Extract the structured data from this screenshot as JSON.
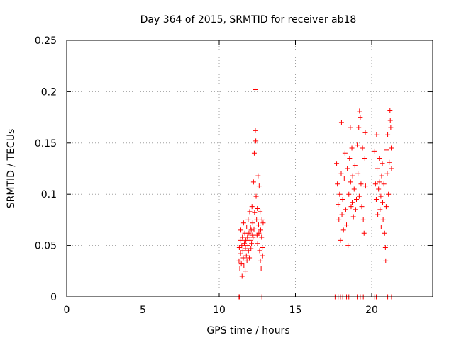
{
  "chart_data": {
    "type": "scatter",
    "title": "Day 364 of 2015, SRMTID for receiver ab18",
    "xlabel": "GPS time / hours",
    "ylabel": "SRMTID / TECUs",
    "xlim": [
      0,
      24
    ],
    "ylim": [
      0,
      0.25
    ],
    "xticks": [
      0,
      5,
      10,
      15,
      20
    ],
    "yticks": [
      0,
      0.05,
      0.1,
      0.15,
      0.2,
      0.25
    ],
    "xtick_labels": [
      "0",
      "5",
      "10",
      "15",
      "20"
    ],
    "ytick_labels": [
      "0",
      "0.05",
      "0.1",
      "0.15",
      "0.2",
      "0.25"
    ],
    "grid": true,
    "marker": "+",
    "series": [
      {
        "name": "SRMTID",
        "color": "#ff0000",
        "points": [
          [
            11.3,
            0
          ],
          [
            11.35,
            0
          ],
          [
            12.8,
            0
          ],
          [
            17.6,
            0
          ],
          [
            17.8,
            0
          ],
          [
            17.95,
            0
          ],
          [
            18.1,
            0
          ],
          [
            18.35,
            0
          ],
          [
            18.5,
            0
          ],
          [
            19.05,
            0
          ],
          [
            19.25,
            0
          ],
          [
            19.45,
            0
          ],
          [
            20.2,
            0
          ],
          [
            20.3,
            0
          ],
          [
            21.05,
            0
          ],
          [
            21.3,
            0
          ],
          [
            11.3,
            0.035
          ],
          [
            11.32,
            0.048
          ],
          [
            11.35,
            0.028
          ],
          [
            11.38,
            0.055
          ],
          [
            11.4,
            0.042
          ],
          [
            11.42,
            0.065
          ],
          [
            11.45,
            0.032
          ],
          [
            11.48,
            0.05
          ],
          [
            11.5,
            0.02
          ],
          [
            11.52,
            0.058
          ],
          [
            11.55,
            0.045
          ],
          [
            11.58,
            0.038
          ],
          [
            11.6,
            0.072
          ],
          [
            11.62,
            0.03
          ],
          [
            11.65,
            0.052
          ],
          [
            11.68,
            0.062
          ],
          [
            11.7,
            0.025
          ],
          [
            11.72,
            0.047
          ],
          [
            11.75,
            0.055
          ],
          [
            11.78,
            0.04
          ],
          [
            11.8,
            0.068
          ],
          [
            11.82,
            0.035
          ],
          [
            11.85,
            0.058
          ],
          [
            11.88,
            0.05
          ],
          [
            11.9,
            0.075
          ],
          [
            11.92,
            0.045
          ],
          [
            11.95,
            0.062
          ],
          [
            11.98,
            0.038
          ],
          [
            12.0,
            0.083
          ],
          [
            12.02,
            0.055
          ],
          [
            12.05,
            0.068
          ],
          [
            12.08,
            0.047
          ],
          [
            12.1,
            0.065
          ],
          [
            12.12,
            0.052
          ],
          [
            12.15,
            0.088
          ],
          [
            12.18,
            0.06
          ],
          [
            12.2,
            0.072
          ],
          [
            12.22,
            0.058
          ],
          [
            12.25,
            0.112
          ],
          [
            12.28,
            0.066
          ],
          [
            12.3,
            0.14
          ],
          [
            12.32,
            0.082
          ],
          [
            12.35,
            0.202
          ],
          [
            12.37,
            0.162
          ],
          [
            12.4,
            0.152
          ],
          [
            12.42,
            0.098
          ],
          [
            12.45,
            0.075
          ],
          [
            12.48,
            0.06
          ],
          [
            12.5,
            0.086
          ],
          [
            12.52,
            0.052
          ],
          [
            12.55,
            0.118
          ],
          [
            12.58,
            0.07
          ],
          [
            12.6,
            0.062
          ],
          [
            12.62,
            0.108
          ],
          [
            12.65,
            0.045
          ],
          [
            12.68,
            0.083
          ],
          [
            12.7,
            0.035
          ],
          [
            12.72,
            0.065
          ],
          [
            12.75,
            0.028
          ],
          [
            12.78,
            0.058
          ],
          [
            12.8,
            0.075
          ],
          [
            12.82,
            0.048
          ],
          [
            12.85,
            0.04
          ],
          [
            12.88,
            0.072
          ],
          [
            17.7,
            0.13
          ],
          [
            17.75,
            0.11
          ],
          [
            17.8,
            0.09
          ],
          [
            17.85,
            0.075
          ],
          [
            17.9,
            0.1
          ],
          [
            17.95,
            0.055
          ],
          [
            18.0,
            0.12
          ],
          [
            18.02,
            0.17
          ],
          [
            18.05,
            0.08
          ],
          [
            18.1,
            0.095
          ],
          [
            18.15,
            0.065
          ],
          [
            18.2,
            0.115
          ],
          [
            18.25,
            0.14
          ],
          [
            18.3,
            0.085
          ],
          [
            18.35,
            0.07
          ],
          [
            18.4,
            0.125
          ],
          [
            18.45,
            0.05
          ],
          [
            18.5,
            0.1
          ],
          [
            18.55,
            0.135
          ],
          [
            18.6,
            0.165
          ],
          [
            18.62,
            0.112
          ],
          [
            18.65,
            0.088
          ],
          [
            18.7,
            0.145
          ],
          [
            18.72,
            0.092
          ],
          [
            18.75,
            0.118
          ],
          [
            18.8,
            0.078
          ],
          [
            18.85,
            0.105
          ],
          [
            18.9,
            0.128
          ],
          [
            18.95,
            0.085
          ],
          [
            19.0,
            0.095
          ],
          [
            19.05,
            0.148
          ],
          [
            19.1,
            0.12
          ],
          [
            19.15,
            0.165
          ],
          [
            19.18,
            0.098
          ],
          [
            19.2,
            0.181
          ],
          [
            19.25,
            0.175
          ],
          [
            19.3,
            0.11
          ],
          [
            19.35,
            0.088
          ],
          [
            19.4,
            0.145
          ],
          [
            19.45,
            0.075
          ],
          [
            19.5,
            0.062
          ],
          [
            19.55,
            0.135
          ],
          [
            19.58,
            0.16
          ],
          [
            19.6,
            0.108
          ],
          [
            20.2,
            0.142
          ],
          [
            20.25,
            0.11
          ],
          [
            20.3,
            0.095
          ],
          [
            20.32,
            0.158
          ],
          [
            20.35,
            0.125
          ],
          [
            20.4,
            0.08
          ],
          [
            20.45,
            0.105
          ],
          [
            20.5,
            0.135
          ],
          [
            20.52,
            0.112
          ],
          [
            20.55,
            0.085
          ],
          [
            20.6,
            0.098
          ],
          [
            20.62,
            0.068
          ],
          [
            20.65,
            0.118
          ],
          [
            20.7,
            0.13
          ],
          [
            20.72,
            0.092
          ],
          [
            20.75,
            0.075
          ],
          [
            20.8,
            0.11
          ],
          [
            20.85,
            0.062
          ],
          [
            20.9,
            0.048
          ],
          [
            20.92,
            0.035
          ],
          [
            20.95,
            0.088
          ],
          [
            21.0,
            0.143
          ],
          [
            21.02,
            0.12
          ],
          [
            21.05,
            0.158
          ],
          [
            21.1,
            0.1
          ],
          [
            21.15,
            0.131
          ],
          [
            21.2,
            0.182
          ],
          [
            21.22,
            0.172
          ],
          [
            21.25,
            0.165
          ],
          [
            21.28,
            0.145
          ],
          [
            21.3,
            0.125
          ]
        ]
      }
    ]
  }
}
